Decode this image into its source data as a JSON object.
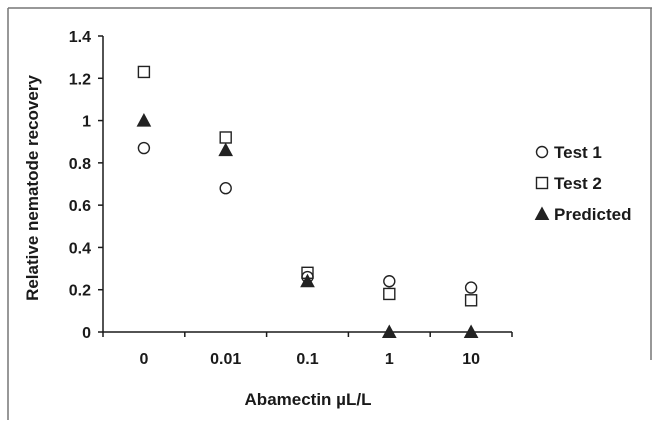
{
  "chart_data": {
    "type": "scatter",
    "title": "",
    "xlabel": "Abamectin µL/L",
    "ylabel": "Relative nematode recovery",
    "categories": [
      "0",
      "0.01",
      "0.1",
      "1",
      "10"
    ],
    "ylim": [
      0,
      1.4
    ],
    "yticks": [
      "0",
      "0.2",
      "0.4",
      "0.6",
      "0.8",
      "1",
      "1.2",
      "1.4"
    ],
    "grid": false,
    "legend_position": "right",
    "series": [
      {
        "name": "Test 1",
        "marker": "circle-open",
        "values": [
          0.87,
          0.68,
          0.26,
          0.24,
          0.21
        ]
      },
      {
        "name": "Test 2",
        "marker": "square-open",
        "values": [
          1.23,
          0.92,
          0.28,
          0.18,
          0.15
        ]
      },
      {
        "name": "Predicted",
        "marker": "triangle-filled",
        "values": [
          1.0,
          0.86,
          0.24,
          0.0,
          0.0
        ]
      }
    ],
    "colors": {
      "marker": "#222222",
      "axis": "#1a1a1a",
      "frame": "#555555"
    }
  }
}
